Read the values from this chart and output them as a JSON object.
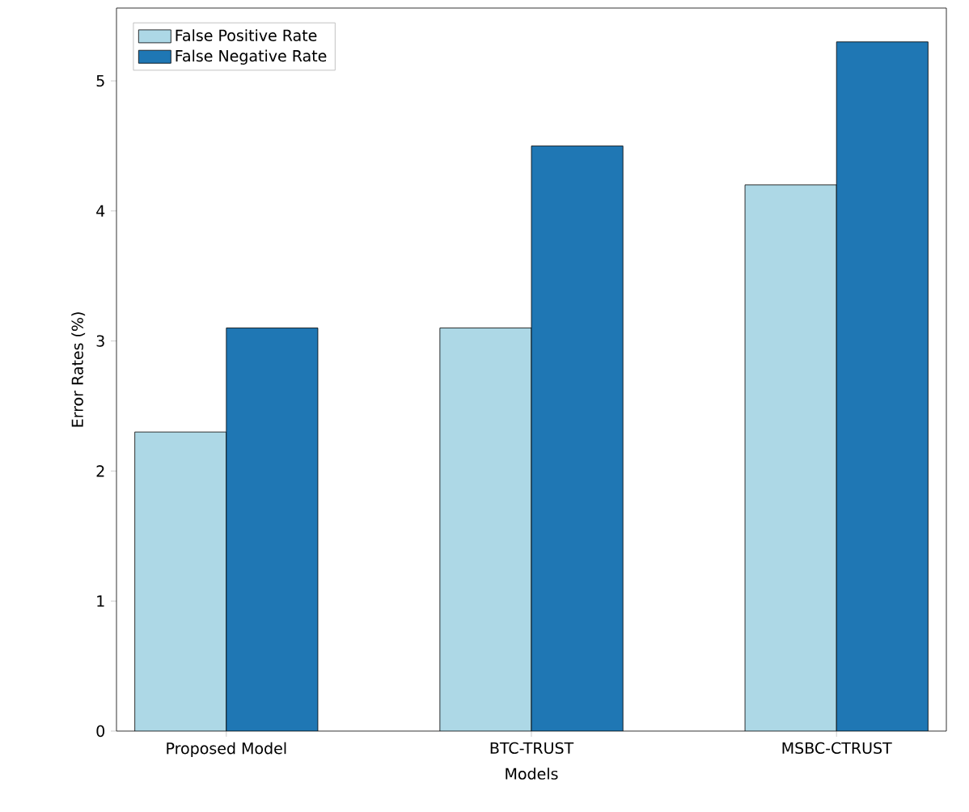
{
  "chart_data": {
    "type": "bar",
    "xlabel": "Models",
    "ylabel": "Error Rates (%)",
    "categories": [
      "Proposed Model",
      "BTC-TRUST",
      "MSBC-CTRUST"
    ],
    "series": [
      {
        "name": "False Positive Rate",
        "color": "#add8e6",
        "values": [
          2.3,
          3.1,
          4.2
        ]
      },
      {
        "name": "False Negative Rate",
        "color": "#1f77b4",
        "values": [
          3.1,
          4.5,
          5.3
        ]
      }
    ],
    "ylim": [
      0,
      5.56
    ],
    "yticks": [
      0,
      1,
      2,
      3,
      4,
      5
    ],
    "grid": false,
    "legend": "top left"
  }
}
